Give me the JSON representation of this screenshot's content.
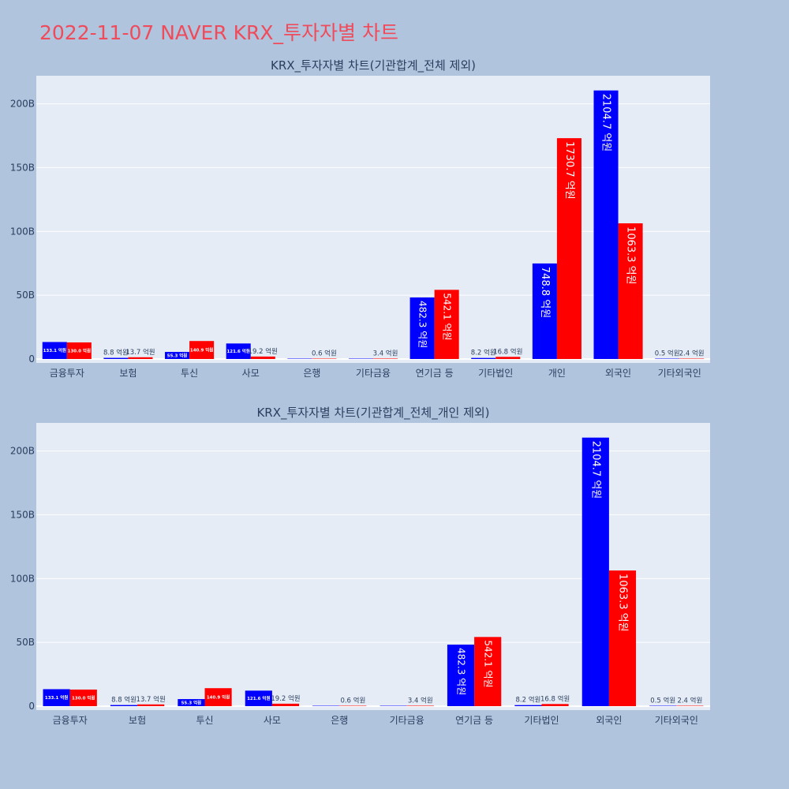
{
  "title": "2022-11-07 NAVER KRX_투자자별 차트",
  "colors": {
    "page_bg": "#b0c4de",
    "plot_bg": "#e5ecf6",
    "title": "#ef4b5a",
    "buy": "#0000ff",
    "sell": "#ff0000"
  },
  "chart_data": [
    {
      "type": "bar",
      "title": "KRX_투자자별 차트(기관합계_전체 제외)",
      "categories": [
        "금융투자",
        "보험",
        "투신",
        "사모",
        "은행",
        "기타금융",
        "연기금 등",
        "기타법인",
        "개인",
        "외국인",
        "기타외국인"
      ],
      "series": [
        {
          "color": "#0000ff",
          "values": [
            13.31,
            0.88,
            5.53,
            12.16,
            0,
            0,
            48.23,
            0.82,
            74.88,
            210.47,
            0.05
          ],
          "labels": [
            "133.1 억원",
            "8.8 억원",
            "55.3 억원",
            "121.6 억원",
            "",
            "",
            "482.3 억원",
            "8.2 억원",
            "748.8 억원",
            "2104.7 억원",
            "0.5 억원"
          ]
        },
        {
          "color": "#ff0000",
          "values": [
            13.0,
            1.37,
            14.09,
            1.92,
            0.06,
            0.34,
            54.21,
            1.68,
            173.07,
            106.33,
            0.24
          ],
          "labels": [
            "130.0 억원",
            "13.7 억원",
            "140.9 억원",
            "19.2 억원",
            "0.6 억원",
            "3.4 억원",
            "542.1 억원",
            "16.8 억원",
            "1730.7 억원",
            "1063.3 억원",
            "2.4 억원"
          ]
        }
      ],
      "y_unit": "B",
      "ylim": [
        0,
        222
      ],
      "yticks": [
        "0",
        "50B",
        "100B",
        "150B",
        "200B"
      ],
      "grid": true,
      "legend": "none"
    },
    {
      "type": "bar",
      "title": "KRX_투자자별 차트(기관합계_전체_개인 제외)",
      "categories": [
        "금융투자",
        "보험",
        "투신",
        "사모",
        "은행",
        "기타금융",
        "연기금 등",
        "기타법인",
        "외국인",
        "기타외국인"
      ],
      "series": [
        {
          "color": "#0000ff",
          "values": [
            13.31,
            0.88,
            5.53,
            12.16,
            0,
            0,
            48.23,
            0.82,
            210.47,
            0.05
          ],
          "labels": [
            "133.1 억원",
            "8.8 억원",
            "55.3 억원",
            "121.6 억원",
            "",
            "",
            "482.3 억원",
            "8.2 억원",
            "2104.7 억원",
            "0.5 억원"
          ]
        },
        {
          "color": "#ff0000",
          "values": [
            13.0,
            1.37,
            14.09,
            1.92,
            0.06,
            0.34,
            54.21,
            1.68,
            106.33,
            0.24
          ],
          "labels": [
            "130.0 억원",
            "13.7 억원",
            "140.9 억원",
            "19.2 억원",
            "0.6 억원",
            "3.4 억원",
            "542.1 억원",
            "16.8 억원",
            "1063.3 억원",
            "2.4 억원"
          ]
        }
      ],
      "y_unit": "B",
      "ylim": [
        0,
        222
      ],
      "yticks": [
        "0",
        "50B",
        "100B",
        "150B",
        "200B"
      ],
      "grid": true,
      "legend": "none"
    }
  ]
}
